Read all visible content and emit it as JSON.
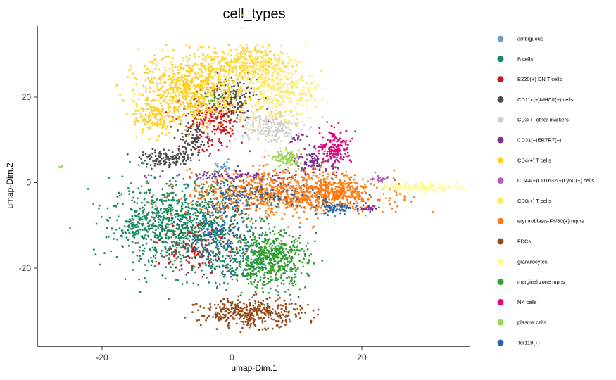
{
  "chart_data": {
    "type": "scatter",
    "title": "cell_types",
    "xlabel": "umap-Dim.1",
    "ylabel": "umap-Dim.2",
    "xlim": [
      -30,
      37
    ],
    "ylim": [
      -38,
      36
    ],
    "x_ticks": [
      -20,
      0,
      20
    ],
    "y_ticks": [
      -20,
      0,
      20
    ],
    "grid": false,
    "legend_position": "right",
    "series": [
      {
        "name": "ambiguous",
        "color": "#6a9ec8",
        "clusters": [
          {
            "cx": -1.5,
            "cy": 3.5,
            "sx": 1.2,
            "sy": 0.8,
            "n": 25
          }
        ]
      },
      {
        "name": "B cells",
        "color": "#1b8a5e",
        "clusters": [
          {
            "cx": -8,
            "cy": -10,
            "sx": 6.5,
            "sy": 6.5,
            "n": 900
          },
          {
            "cx": 3,
            "cy": -18,
            "sx": 5,
            "sy": 4.5,
            "n": 260
          },
          {
            "cx": -14,
            "cy": -10,
            "sx": 2.5,
            "sy": 2,
            "n": 80
          }
        ]
      },
      {
        "name": "B220(+) DN T cells",
        "color": "#d7111b",
        "clusters": [
          {
            "cx": -3,
            "cy": 14,
            "sx": 3,
            "sy": 4,
            "n": 220
          },
          {
            "cx": -5,
            "cy": -15,
            "sx": 4,
            "sy": 4,
            "n": 120
          }
        ]
      },
      {
        "name": "CD11c(+)MHCII(+) cells",
        "color": "#4d4d4d",
        "clusters": [
          {
            "cx": -10,
            "cy": 5.5,
            "sx": 2.5,
            "sy": 1.2,
            "n": 120
          },
          {
            "cx": -6,
            "cy": 10,
            "sx": 1.8,
            "sy": 3,
            "n": 90
          },
          {
            "cx": 0,
            "cy": 20,
            "sx": 2.5,
            "sy": 3,
            "n": 130
          }
        ]
      },
      {
        "name": "CD3(+) other markers",
        "color": "#cfcfcf",
        "clusters": [
          {
            "cx": 6,
            "cy": 13,
            "sx": 3,
            "sy": 2.5,
            "n": 200
          }
        ]
      },
      {
        "name": "CD31(+)ERTR7(+)",
        "color": "#7b3294",
        "clusters": [
          {
            "cx": 13,
            "cy": 5,
            "sx": 2,
            "sy": 1.8,
            "n": 110
          },
          {
            "cx": 0,
            "cy": 1.5,
            "sx": 7,
            "sy": 0.7,
            "n": 90
          },
          {
            "cx": 21,
            "cy": -6,
            "sx": 1.2,
            "sy": 0.6,
            "n": 30
          },
          {
            "cx": 10,
            "cy": 10.5,
            "sx": 0.8,
            "sy": 0.8,
            "n": 15
          }
        ]
      },
      {
        "name": "CD4(+) T cells",
        "color": "#fcd023",
        "clusters": [
          {
            "cx": -6,
            "cy": 22,
            "sx": 5,
            "sy": 5,
            "n": 800
          },
          {
            "cx": 2,
            "cy": 28,
            "sx": 3.5,
            "sy": 2.5,
            "n": 200
          },
          {
            "cx": -12,
            "cy": 15,
            "sx": 2,
            "sy": 2.5,
            "n": 120
          }
        ]
      },
      {
        "name": "CD44(+)CD1632(+)Ly6C(+) cells",
        "color": "#b460b0",
        "clusters": [
          {
            "cx": 23,
            "cy": 0.7,
            "sx": 1.2,
            "sy": 0.6,
            "n": 25
          }
        ]
      },
      {
        "name": "CD8(+) T cells",
        "color": "#fde863",
        "clusters": [
          {
            "cx": 7,
            "cy": 22,
            "sx": 3.5,
            "sy": 5,
            "n": 350
          },
          {
            "cx": 3,
            "cy": 27,
            "sx": 3,
            "sy": 3,
            "n": 120
          }
        ]
      },
      {
        "name": "erythroblasts-F4/80(+) mphs",
        "color": "#fc7a14",
        "clusters": [
          {
            "cx": 8,
            "cy": -2.5,
            "sx": 9,
            "sy": 3.2,
            "n": 900
          },
          {
            "cx": 16,
            "cy": -2,
            "sx": 3.5,
            "sy": 2,
            "n": 200
          }
        ]
      },
      {
        "name": "FDCs",
        "color": "#954a1a",
        "clusters": [
          {
            "cx": 3,
            "cy": -30.5,
            "sx": 5,
            "sy": 2,
            "n": 380
          }
        ]
      },
      {
        "name": "granulocytes",
        "color": "#fff99a",
        "clusters": [
          {
            "cx": 29,
            "cy": -1,
            "sx": 4,
            "sy": 0.6,
            "n": 150
          },
          {
            "cx": 12,
            "cy": 22,
            "sx": 0.8,
            "sy": 0.8,
            "n": 12
          }
        ]
      },
      {
        "name": "marginal zone mphs",
        "color": "#35a02d",
        "clusters": [
          {
            "cx": 6,
            "cy": -18,
            "sx": 3.5,
            "sy": 4,
            "n": 450
          },
          {
            "cx": -3,
            "cy": 20,
            "sx": 1,
            "sy": 1,
            "n": 12
          }
        ]
      },
      {
        "name": "NK cells",
        "color": "#e6087a",
        "clusters": [
          {
            "cx": 16,
            "cy": 8.5,
            "sx": 1.5,
            "sy": 2.5,
            "n": 150
          }
        ]
      },
      {
        "name": "plasma cells",
        "color": "#9ed64f",
        "clusters": [
          {
            "cx": 8.5,
            "cy": 5.5,
            "sx": 1.2,
            "sy": 1.2,
            "n": 100
          },
          {
            "cx": -26.5,
            "cy": 4,
            "sx": 0.3,
            "sy": 0.3,
            "n": 4
          }
        ]
      },
      {
        "name": "Ter119(+)",
        "color": "#2966a8",
        "clusters": [
          {
            "cx": -2,
            "cy": -12,
            "sx": 3,
            "sy": 6,
            "n": 200
          },
          {
            "cx": 16,
            "cy": -6,
            "sx": 1.8,
            "sy": 1,
            "n": 70
          },
          {
            "cx": 4,
            "cy": -3,
            "sx": 6,
            "sy": 2,
            "n": 120
          }
        ]
      }
    ]
  }
}
